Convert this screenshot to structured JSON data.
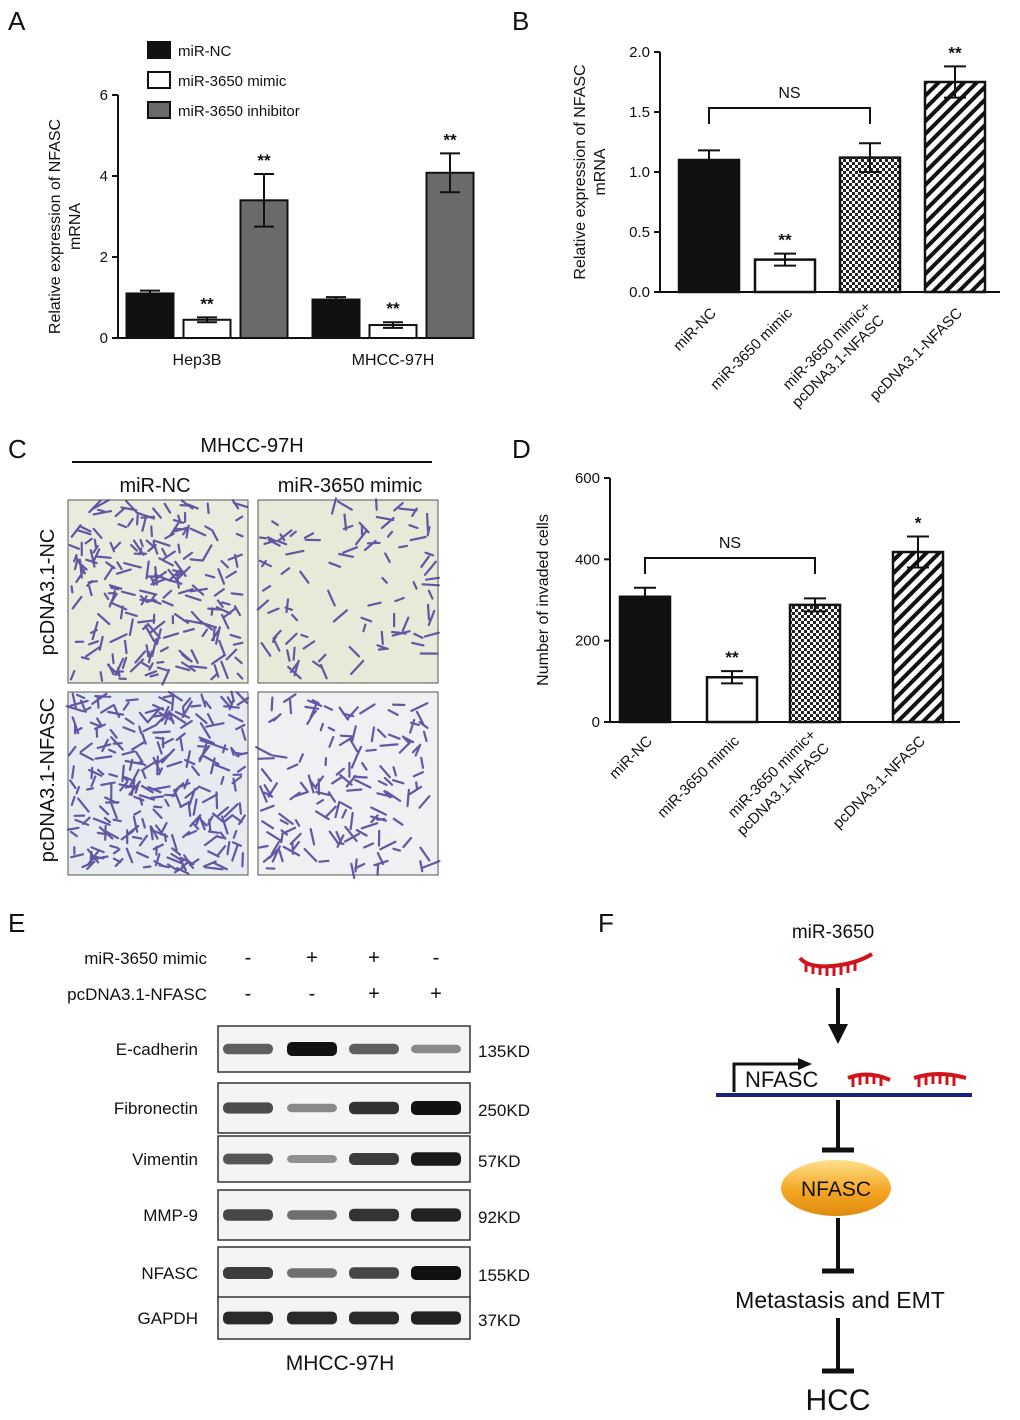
{
  "panels": {
    "A": "A",
    "B": "B",
    "C": "C",
    "D": "D",
    "E": "E",
    "F": "F"
  },
  "chart_data": [
    {
      "panel": "A",
      "type": "bar",
      "ylabel": "Relative expression of NFASC mRNA",
      "ylabel_lines": [
        "Relative expression of NFASC",
        "mRNA"
      ],
      "ylim": [
        0,
        6
      ],
      "yticks": [
        "0",
        "2",
        "4",
        "6"
      ],
      "categories": [
        "Hep3B",
        "MHCC-97H"
      ],
      "legend_placement": "top-left",
      "series": [
        {
          "name": "miR-NC",
          "values": [
            1.1,
            0.95
          ],
          "errors": [
            0.07,
            0.06
          ],
          "stars": [
            "",
            ""
          ],
          "fill": "#111111"
        },
        {
          "name": "miR-3650 mimic",
          "values": [
            0.45,
            0.32
          ],
          "errors": [
            0.06,
            0.07
          ],
          "stars": [
            "**",
            "**"
          ],
          "fill": "#ffffff"
        },
        {
          "name": "miR-3650 inhibitor",
          "values": [
            3.4,
            4.08
          ],
          "errors": [
            0.65,
            0.48
          ],
          "stars": [
            "**",
            "**"
          ],
          "fill": "#6a6a6a"
        }
      ]
    },
    {
      "panel": "B",
      "type": "bar",
      "ylabel": "Relative expression of NFASC mRNA",
      "ylabel_lines": [
        "Relative expression of NFASC",
        "mRNA"
      ],
      "ylim": [
        0,
        2.0
      ],
      "yticks": [
        "0.0",
        "0.5",
        "1.0",
        "1.5",
        "2.0"
      ],
      "categories": [
        "miR-NC",
        "miR-3650 mimic",
        "miR-3650 mimic+",
        "pcDNA3.1-NFASC"
      ],
      "category_lines": [
        [
          "miR-NC"
        ],
        [
          "miR-3650 mimic"
        ],
        [
          "miR-3650 mimic+",
          "pcDNA3.1-NFASC"
        ],
        [
          "pcDNA3.1-NFASC"
        ]
      ],
      "values": [
        1.1,
        0.27,
        1.12,
        1.75
      ],
      "errors": [
        0.08,
        0.05,
        0.12,
        0.13
      ],
      "patterns": [
        "solid",
        "white",
        "checker",
        "hatch"
      ],
      "stars": [
        "",
        "**",
        "",
        "**"
      ],
      "bracket": {
        "from": 0,
        "to": 2,
        "label": "NS"
      }
    },
    {
      "panel": "D",
      "type": "bar",
      "ylabel": "Number of invaded cells",
      "ylim": [
        0,
        600
      ],
      "yticks": [
        "0",
        "200",
        "400",
        "600"
      ],
      "categories": [
        "miR-NC",
        "miR-3650 mimic",
        "miR-3650 mimic+",
        "pcDNA3.1-NFASC"
      ],
      "category_lines": [
        [
          "miR-NC"
        ],
        [
          "miR-3650 mimic"
        ],
        [
          "miR-3650 mimic+",
          "pcDNA3.1-NFASC"
        ],
        [
          "pcDNA3.1-NFASC"
        ]
      ],
      "values": [
        308,
        110,
        288,
        418
      ],
      "errors": [
        22,
        15,
        16,
        38
      ],
      "patterns": [
        "solid",
        "white",
        "checker",
        "hatch"
      ],
      "stars": [
        "",
        "**",
        "",
        "*"
      ],
      "bracket": {
        "from": 0,
        "to": 2,
        "label": "NS"
      }
    }
  ],
  "panel_c": {
    "cell_line": "MHCC-97H",
    "col_headers": [
      "miR-NC",
      "miR-3650 mimic"
    ],
    "row_headers": [
      "pcDNA3.1-NC",
      "pcDNA3.1-NFASC"
    ],
    "cell_density": [
      [
        0.8,
        0.35
      ],
      [
        1.0,
        0.55
      ]
    ]
  },
  "panel_e": {
    "conditions": [
      {
        "label": "miR-3650 mimic",
        "signs": [
          "-",
          "+",
          "+",
          "-"
        ]
      },
      {
        "label": "pcDNA3.1-NFASC",
        "signs": [
          "-",
          "-",
          "+",
          "+"
        ]
      }
    ],
    "blots": [
      {
        "name": "E-cadherin",
        "kd": "135KD",
        "intensities": [
          0.55,
          1.0,
          0.55,
          0.3
        ]
      },
      {
        "name": "Fibronectin",
        "kd": "250KD",
        "intensities": [
          0.65,
          0.3,
          0.8,
          1.0
        ]
      },
      {
        "name": "Vimentin",
        "kd": "57KD",
        "intensities": [
          0.6,
          0.25,
          0.75,
          0.95
        ]
      },
      {
        "name": "MMP-9",
        "kd": "92KD",
        "intensities": [
          0.7,
          0.45,
          0.8,
          0.9
        ]
      },
      {
        "name": "NFASC",
        "kd": "155KD",
        "intensities": [
          0.75,
          0.45,
          0.7,
          1.0
        ]
      },
      {
        "name": "GAPDH",
        "kd": "37KD",
        "intensities": [
          0.85,
          0.85,
          0.85,
          0.9
        ]
      }
    ],
    "footer": "MHCC-97H"
  },
  "panel_f": {
    "mirna": "miR-3650",
    "gene": "NFASC",
    "protein": "NFASC",
    "outcome": "Metastasis and EMT",
    "disease": "HCC"
  },
  "colors": {
    "mirna_red": "#d0141c",
    "dna_blue": "#1a237e",
    "protein_orange": "#f5a623",
    "stain_purple": "#4b3c98"
  }
}
